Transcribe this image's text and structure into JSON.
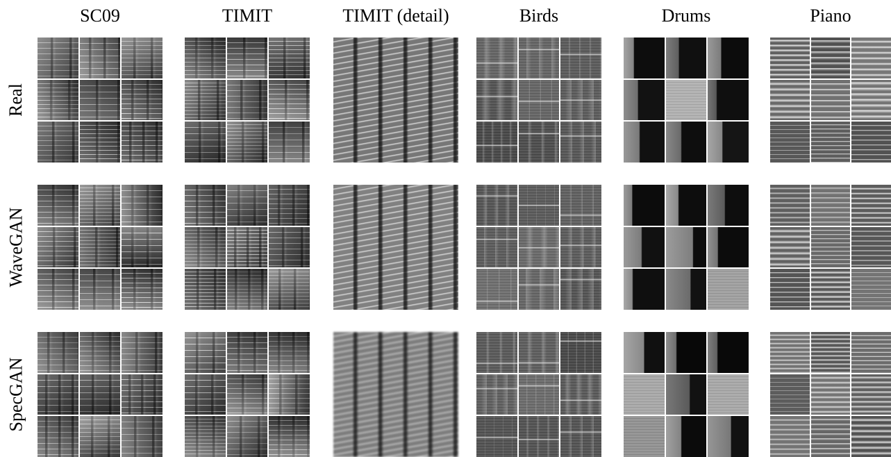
{
  "columns": [
    {
      "key": "sc09",
      "label": "SC09"
    },
    {
      "key": "timit",
      "label": "TIMIT"
    },
    {
      "key": "timit_detail",
      "label": "TIMIT (detail)"
    },
    {
      "key": "birds",
      "label": "Birds"
    },
    {
      "key": "drums",
      "label": "Drums"
    },
    {
      "key": "piano",
      "label": "Piano"
    }
  ],
  "rows": [
    {
      "key": "real",
      "label": "Real"
    },
    {
      "key": "wavegan",
      "label": "WaveGAN"
    },
    {
      "key": "specgan",
      "label": "SpecGAN"
    }
  ],
  "image_description": "Grid of grayscale spectrogram samples: columns are datasets, rows are real data vs. generated by WaveGAN and SpecGAN. Each cell shows a 3x3 grid of spectrograms except the TIMIT (detail) column which shows one enlarged spectrogram.",
  "colors": {
    "background": "#ffffff",
    "spectrogram_dark": "#0a0a0a",
    "spectrogram_light": "#e8e8e8"
  }
}
